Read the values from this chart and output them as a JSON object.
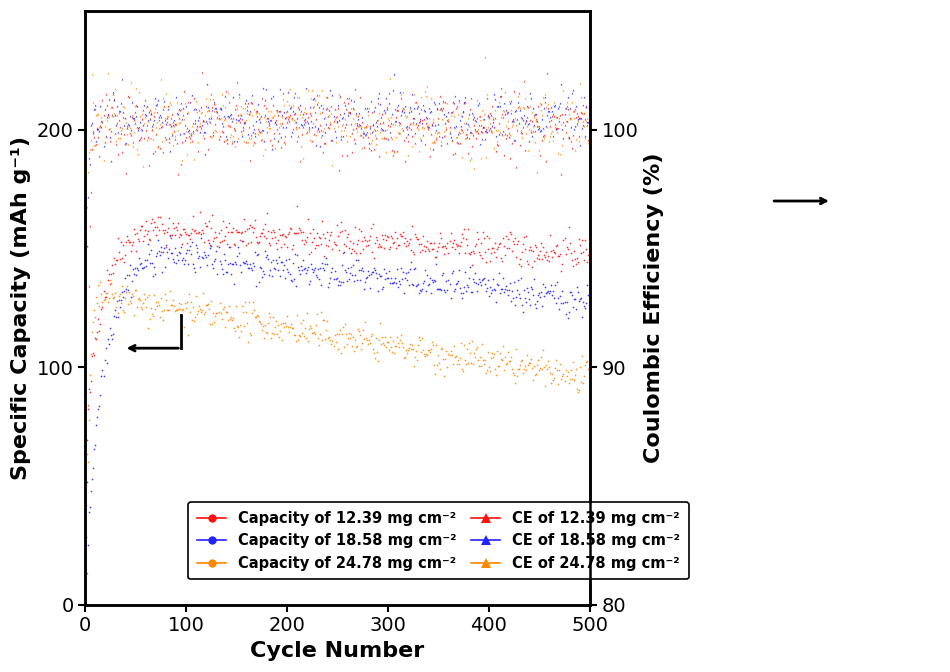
{
  "xlabel": "Cycle Number",
  "ylabel_left": "Specific Capacity (mAh g⁻¹)",
  "ylabel_right": "Coulombic Efficiency (%)",
  "xlim": [
    0,
    500
  ],
  "ylim_left": [
    0,
    250
  ],
  "ylim_right": [
    80,
    105
  ],
  "xticks": [
    0,
    100,
    200,
    300,
    400,
    500
  ],
  "yticks_left": [
    0,
    100,
    200
  ],
  "yticks_right": [
    80,
    90,
    100
  ],
  "color_red": "#FF1111",
  "color_blue": "#2222FF",
  "color_orange": "#FF8800",
  "label_cap12": "Capacity of 12.39 mg cm⁻²",
  "label_cap18": "Capacity of 18.58 mg cm⁻²",
  "label_cap24": "Capacity of 24.78 mg cm⁻²",
  "label_ce12": "CE of 12.39 mg cm⁻²",
  "label_ce18": "CE of 18.58 mg cm⁻²",
  "label_ce24": "CE of 24.78 mg cm⁻²",
  "fontsize_label": 16,
  "fontsize_tick": 14,
  "fontsize_legend": 10.5
}
